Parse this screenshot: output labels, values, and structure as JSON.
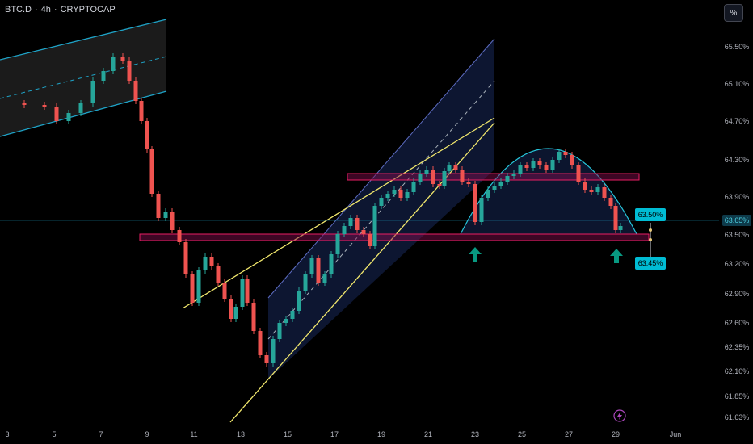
{
  "header": {
    "symbol": "BTC.D",
    "interval": "4h",
    "exchange": "CRYPTOCAP",
    "separator": "·"
  },
  "scale_button": "%",
  "colors": {
    "background": "#000000",
    "up": "#26a69a",
    "down": "#ef5350",
    "channel": "#1fa3c7",
    "wedge": "#f2e86d",
    "resistance_zone": "#c2185b",
    "arc": "#26c6da",
    "arrow": "#089981",
    "price_label": "#00bcd4",
    "axis_text": "#b2b5be"
  },
  "icons": {
    "bottom_alert": "lightning-icon",
    "arrows": "up-arrow-icon"
  },
  "chart_data": {
    "type": "candlestick",
    "title": "BTC.D · 4h · CRYPTOCAP",
    "y_ticks": [
      "65.50%",
      "65.10%",
      "64.70%",
      "64.30%",
      "63.90%",
      "63.50%",
      "63.20%",
      "62.90%",
      "62.60%",
      "62.35%",
      "62.10%",
      "61.85%",
      "61.63%"
    ],
    "x_ticks": [
      "3",
      "5",
      "7",
      "9",
      "11",
      "13",
      "15",
      "17",
      "19",
      "21",
      "23",
      "25",
      "27",
      "29",
      "Jun"
    ],
    "price_labels": {
      "current": "63.65%",
      "upper_marker": "63.50%",
      "lower_marker": "63.45%"
    },
    "support_zone": [
      63.45,
      63.52
    ],
    "resistance_zone": [
      64.05,
      64.12
    ],
    "grid": false,
    "legend": "none"
  }
}
